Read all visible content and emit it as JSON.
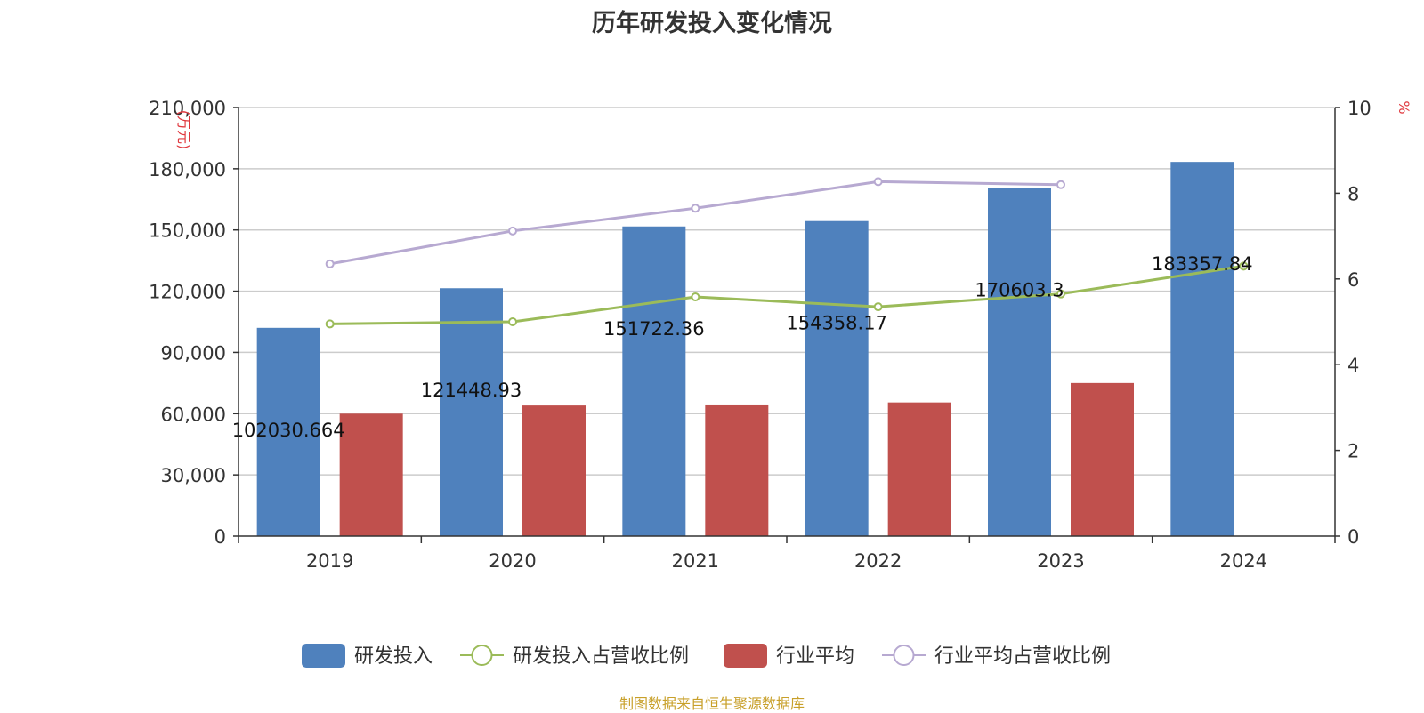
{
  "title": "历年研发投入变化情况",
  "source": "制图数据来自恒生聚源数据库",
  "colors": {
    "rd": "#4f81bd",
    "rd_ratio": "#9bbb59",
    "industry": "#c0504d",
    "industry_ratio": "#b7a9d1",
    "grid": "#cccccc",
    "axis": "#333333",
    "unit": "#e0383e"
  },
  "chart_data": {
    "type": "bar",
    "title": "历年研发投入变化情况",
    "categories": [
      "2019",
      "2020",
      "2021",
      "2022",
      "2023",
      "2024"
    ],
    "left_axis": {
      "unit": "(万元)",
      "range": [
        0,
        210000
      ],
      "ticks": [
        0,
        30000,
        60000,
        90000,
        120000,
        150000,
        180000,
        210000
      ],
      "tick_labels": [
        "0",
        "30,000",
        "60,000",
        "90,000",
        "120,000",
        "150,000",
        "180,000",
        "210,000"
      ]
    },
    "right_axis": {
      "unit": "%",
      "range": [
        0,
        10
      ],
      "ticks": [
        0,
        2,
        4,
        6,
        8,
        10
      ],
      "tick_labels": [
        "0",
        "2",
        "4",
        "6",
        "8",
        "10"
      ]
    },
    "series": [
      {
        "name": "研发投入",
        "type": "bar",
        "axis": "left",
        "values": [
          102030.664,
          121448.93,
          151722.36,
          154358.17,
          170603.3,
          183357.84
        ],
        "labels": [
          "102030.664",
          "121448.93",
          "151722.36",
          "154358.17",
          "170603.3",
          "183357.84"
        ]
      },
      {
        "name": "研发投入占营收比例",
        "type": "line",
        "axis": "right",
        "values": [
          4.95,
          5.0,
          5.58,
          5.35,
          5.65,
          6.3
        ]
      },
      {
        "name": "行业平均",
        "type": "bar",
        "axis": "left",
        "values": [
          60000,
          64000,
          64500,
          65500,
          75000,
          null
        ]
      },
      {
        "name": "行业平均占营收比例",
        "type": "line",
        "axis": "right",
        "values": [
          6.35,
          7.12,
          7.65,
          8.27,
          8.2,
          null
        ]
      }
    ],
    "legend": {
      "position": "bottom",
      "items": [
        "研发投入",
        "研发投入占营收比例",
        "行业平均",
        "行业平均占营收比例"
      ]
    },
    "grid": true
  }
}
